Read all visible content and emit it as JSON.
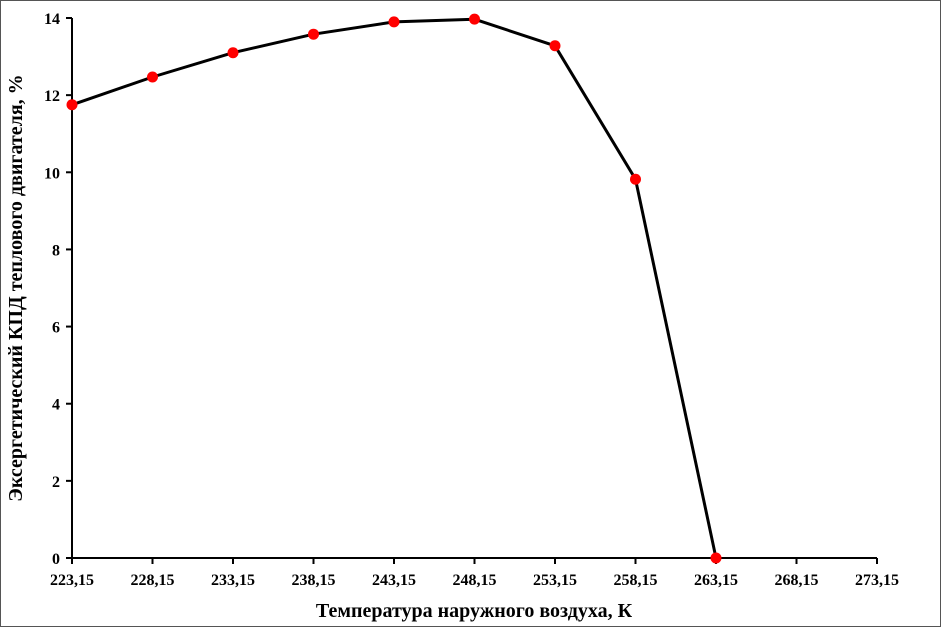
{
  "chart_data": {
    "type": "line",
    "title": "",
    "xlabel": "Температура наружного воздуха, К",
    "ylabel": "Эксергетический КПД теплового двигателя, %",
    "xlim": [
      223.15,
      273.15
    ],
    "ylim": [
      0,
      14
    ],
    "x_ticks": [
      223.15,
      228.15,
      233.15,
      238.15,
      243.15,
      248.15,
      253.15,
      258.15,
      263.15,
      268.15,
      273.15
    ],
    "x_tick_labels": [
      "223,15",
      "228,15",
      "233,15",
      "238,15",
      "243,15",
      "248,15",
      "253,15",
      "258,15",
      "263,15",
      "268,15",
      "273,15"
    ],
    "y_ticks": [
      0,
      2,
      4,
      6,
      8,
      10,
      12,
      14
    ],
    "y_tick_labels": [
      "0",
      "2",
      "4",
      "6",
      "8",
      "10",
      "12",
      "14"
    ],
    "grid": false,
    "legend": "none",
    "series": [
      {
        "x": [
          223.15,
          228.15,
          233.15,
          238.15,
          243.15,
          248.15,
          253.15,
          258.15,
          263.15
        ],
        "y": [
          11.75,
          12.47,
          13.1,
          13.58,
          13.9,
          13.97,
          13.28,
          9.82,
          0
        ],
        "line_color": "#000000",
        "marker_color": "#ff0000"
      }
    ]
  }
}
